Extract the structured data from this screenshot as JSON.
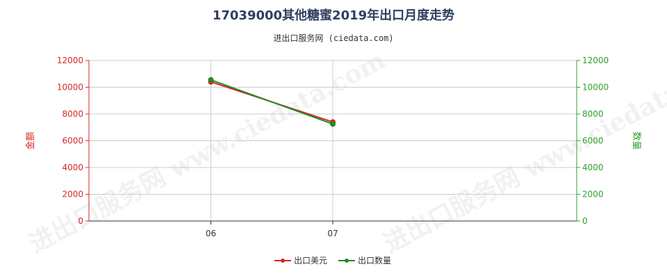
{
  "header": {
    "title": "17039000其他糖蜜2019年出口月度走势",
    "subtitle": "进出口服务网 (ciedata.com)"
  },
  "watermark": "进出口服务网 www.ciedata.com",
  "colors": {
    "left_axis": "#d62728",
    "right_axis": "#2ca02c",
    "series_value": "#d62728",
    "series_qty": "#228b22",
    "grid": "#cccccc"
  },
  "chart_data": {
    "type": "line",
    "categories": [
      "06",
      "07"
    ],
    "ylabel_left": "金额",
    "ylabel_right": "数量",
    "ylim_left": [
      0,
      12000
    ],
    "ylim_right": [
      0,
      12000
    ],
    "yticks_left": [
      "0",
      "2000",
      "4000",
      "6000",
      "8000",
      "10000",
      "12000"
    ],
    "yticks_right": [
      "0",
      "2000",
      "4000",
      "6000",
      "8000",
      "10000",
      "12000"
    ],
    "grid": true,
    "legend_position": "bottom",
    "series": [
      {
        "name": "出口美元",
        "axis": "left",
        "values": [
          10400,
          7400
        ]
      },
      {
        "name": "出口数量",
        "axis": "right",
        "values": [
          10550,
          7250
        ]
      }
    ]
  }
}
